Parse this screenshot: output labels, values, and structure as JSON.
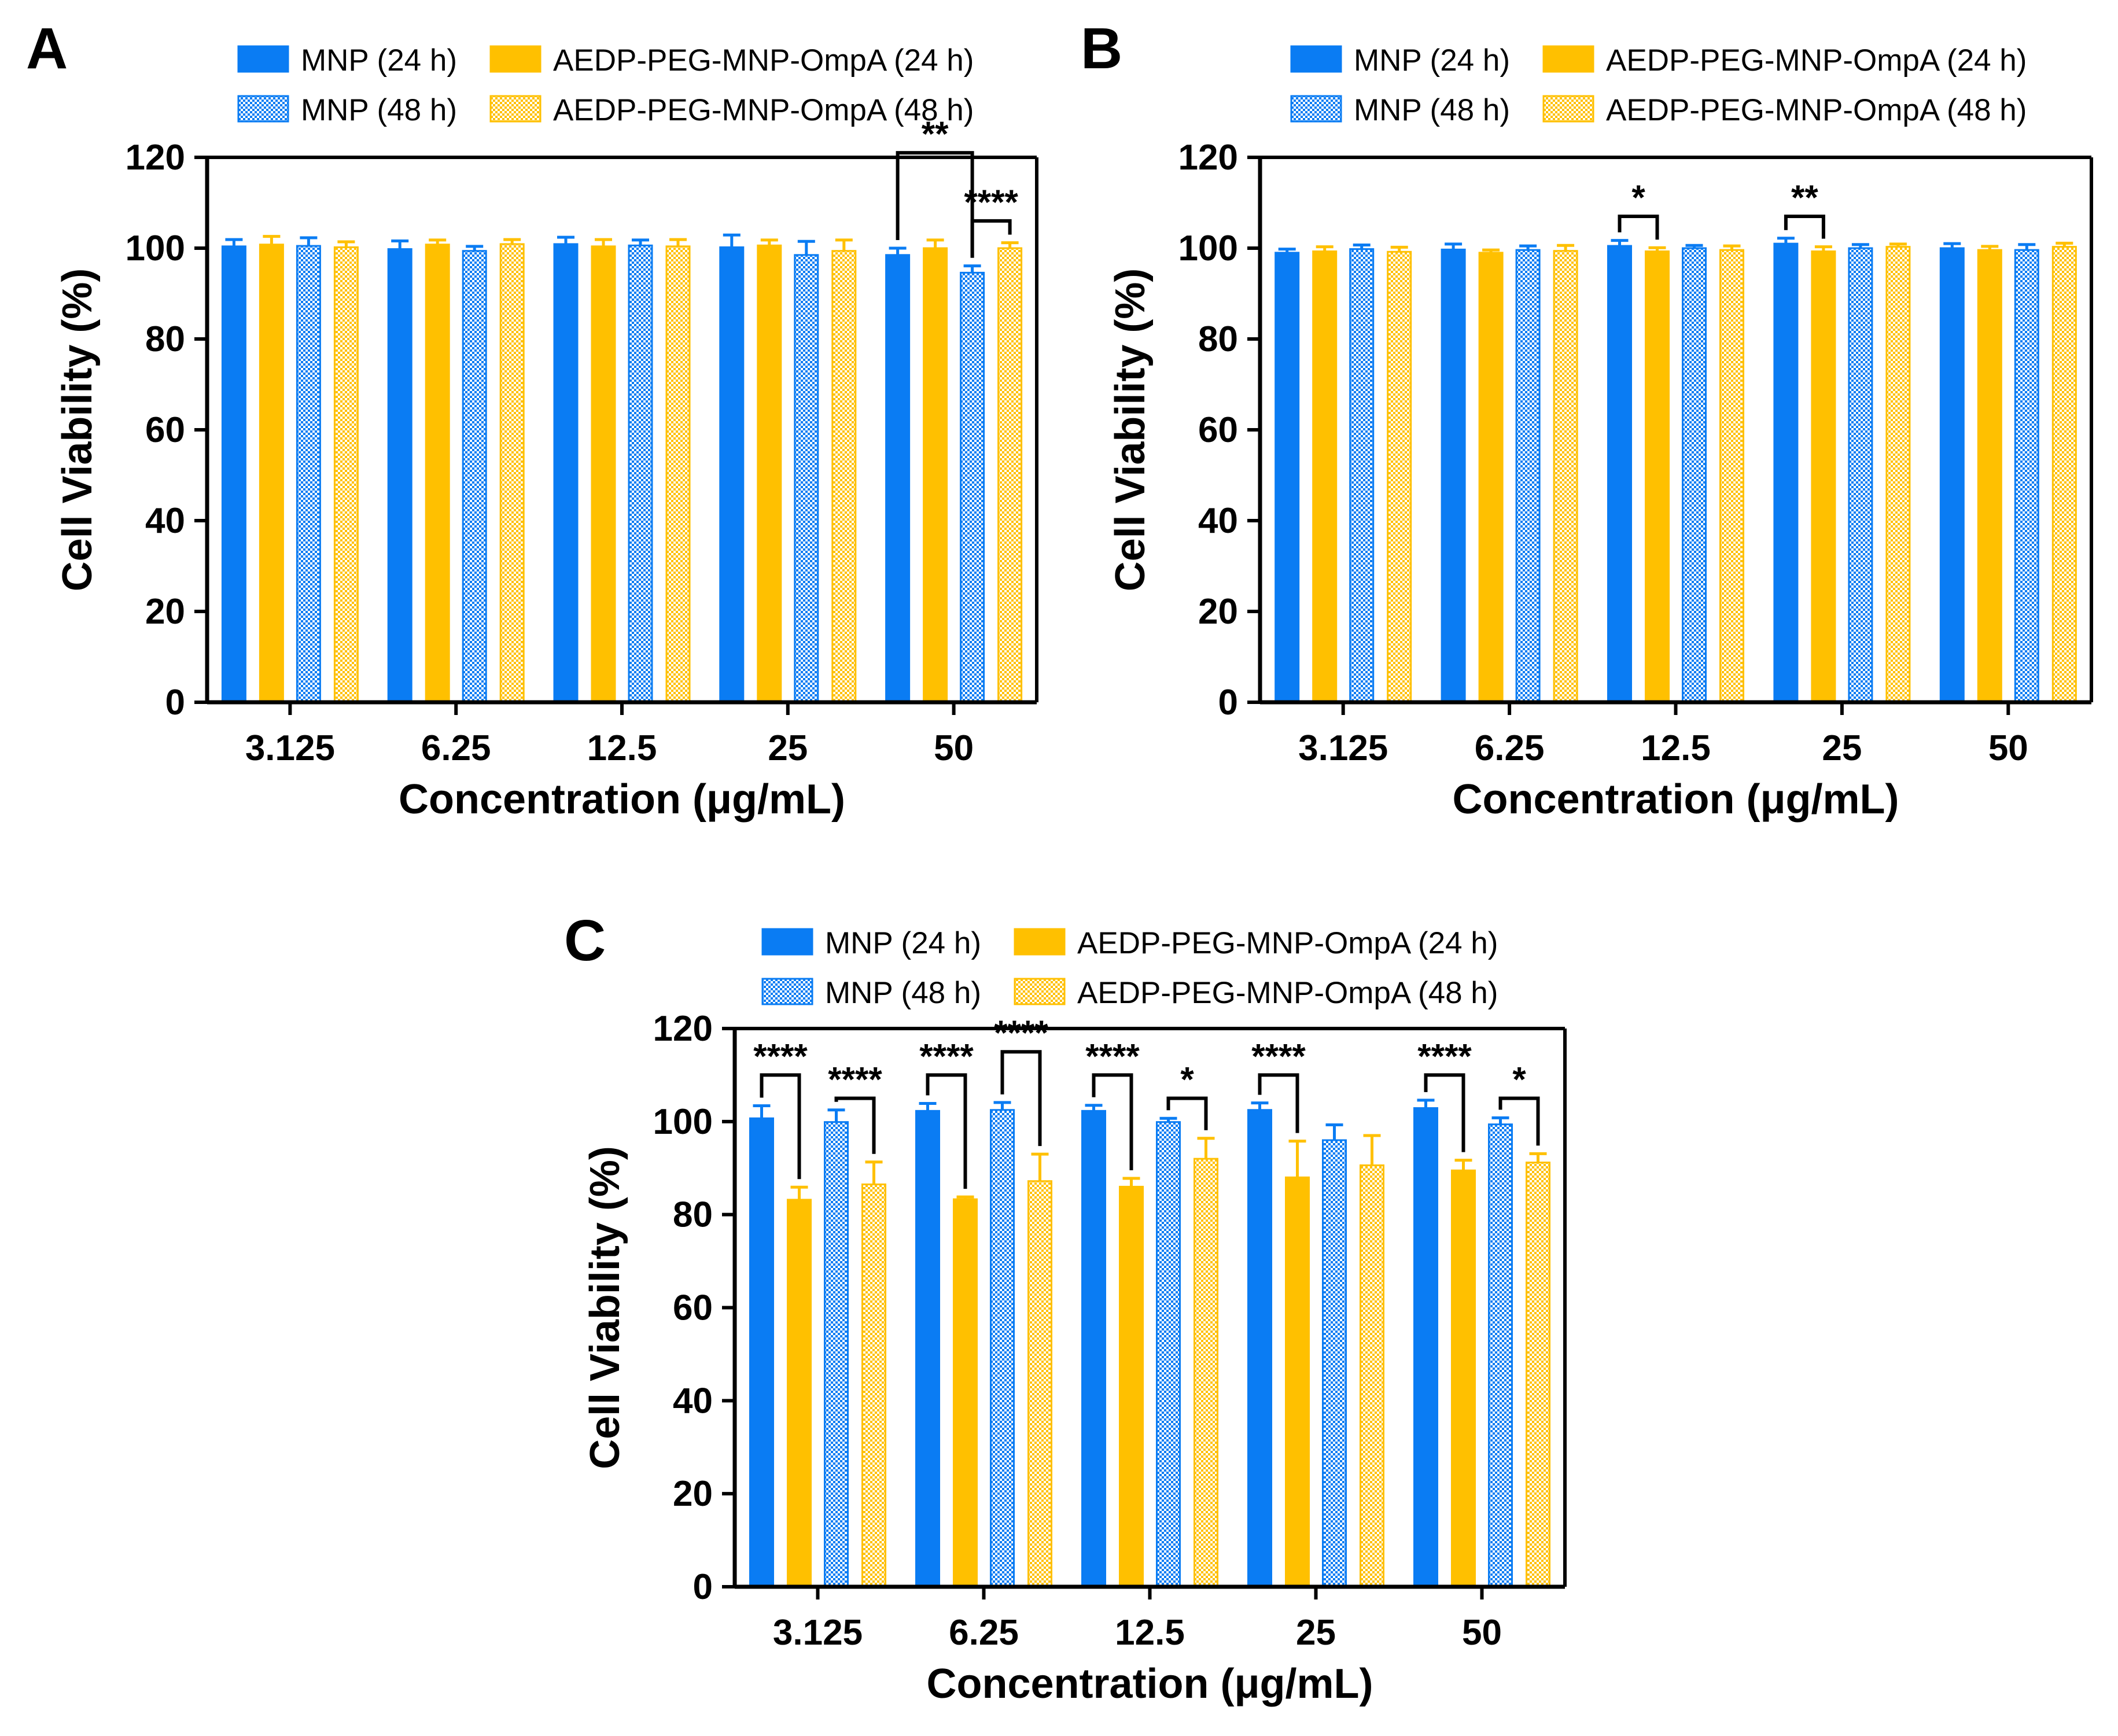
{
  "colors": {
    "mnp": "#0A7CF3",
    "aedp": "#FFC000",
    "axis": "#000000",
    "pattern_bg": "#ffffff"
  },
  "legend": {
    "items": [
      {
        "label": "MNP (24 h)",
        "color": "#0A7CF3",
        "pattern": false
      },
      {
        "label": "AEDP-PEG-MNP-OmpA (24 h)",
        "color": "#FFC000",
        "pattern": false
      },
      {
        "label": "MNP (48 h)",
        "color": "#0A7CF3",
        "pattern": true
      },
      {
        "label": "AEDP-PEG-MNP-OmpA (48 h)",
        "color": "#FFC000",
        "pattern": true
      }
    ]
  },
  "chart_data": [
    {
      "panel": "A",
      "type": "bar",
      "xlabel": "Concentration (μg/mL)",
      "ylabel": "Cell Viability (%)",
      "ylim": [
        0,
        120
      ],
      "yticks": [
        0,
        20,
        40,
        60,
        80,
        100,
        120
      ],
      "categories": [
        "3.125",
        "6.25",
        "12.5",
        "25",
        "50"
      ],
      "series": [
        {
          "name": "MNP (24 h)",
          "values": [
            100.4,
            99.8,
            100.9,
            100.2,
            98.5
          ],
          "errors": [
            1.5,
            1.8,
            1.5,
            2.7,
            1.5
          ]
        },
        {
          "name": "AEDP-PEG-MNP-OmpA (24 h)",
          "values": [
            100.8,
            100.8,
            100.4,
            100.6,
            100.0
          ],
          "errors": [
            1.8,
            1.0,
            1.5,
            1.2,
            1.8
          ]
        },
        {
          "name": "MNP (48 h)",
          "values": [
            100.5,
            99.4,
            100.6,
            98.5,
            94.6
          ],
          "errors": [
            1.8,
            1.0,
            1.2,
            3.0,
            1.5
          ]
        },
        {
          "name": "AEDP-PEG-MNP-OmpA (48 h)",
          "values": [
            100.2,
            100.9,
            100.4,
            99.4,
            100.0
          ],
          "errors": [
            1.2,
            1.0,
            1.5,
            2.4,
            1.2
          ]
        }
      ],
      "significance": [
        {
          "label": "**",
          "category": 4,
          "from": 0,
          "to": 2,
          "level": 121
        },
        {
          "label": "****",
          "category": 4,
          "from": 2,
          "to": 3,
          "level": 106
        }
      ]
    },
    {
      "panel": "B",
      "type": "bar",
      "xlabel": "Concentration (μg/mL)",
      "ylabel": "Cell Viability (%)",
      "ylim": [
        0,
        120
      ],
      "yticks": [
        0,
        20,
        40,
        60,
        80,
        100,
        120
      ],
      "categories": [
        "3.125",
        "6.25",
        "12.5",
        "25",
        "50"
      ],
      "series": [
        {
          "name": "MNP (24 h)",
          "values": [
            99.0,
            99.7,
            100.5,
            101.0,
            100.0
          ],
          "errors": [
            0.8,
            1.2,
            1.2,
            1.2,
            1.0
          ]
        },
        {
          "name": "AEDP-PEG-MNP-OmpA (24 h)",
          "values": [
            99.3,
            99.0,
            99.3,
            99.3,
            99.6
          ],
          "errors": [
            1.0,
            0.6,
            0.8,
            1.0,
            0.8
          ]
        },
        {
          "name": "MNP (48 h)",
          "values": [
            99.8,
            99.6,
            100.0,
            100.0,
            99.6
          ],
          "errors": [
            0.9,
            0.9,
            0.6,
            0.8,
            1.2
          ]
        },
        {
          "name": "AEDP-PEG-MNP-OmpA (48 h)",
          "values": [
            99.2,
            99.4,
            99.6,
            100.3,
            100.3
          ],
          "errors": [
            1.0,
            1.2,
            0.9,
            0.6,
            0.8
          ]
        }
      ],
      "significance": [
        {
          "label": "*",
          "category": 2,
          "from": 0,
          "to": 1,
          "level": 107
        },
        {
          "label": "**",
          "category": 3,
          "from": 0,
          "to": 1,
          "level": 107
        }
      ]
    },
    {
      "panel": "C",
      "type": "bar",
      "xlabel": "Concentration (μg/mL)",
      "ylabel": "Cell Viability (%)",
      "ylim": [
        0,
        120
      ],
      "yticks": [
        0,
        20,
        40,
        60,
        80,
        100,
        120
      ],
      "categories": [
        "3.125",
        "6.25",
        "12.5",
        "25",
        "50"
      ],
      "series": [
        {
          "name": "MNP (24 h)",
          "values": [
            100.7,
            102.3,
            102.3,
            102.5,
            102.9
          ],
          "errors": [
            2.7,
            1.6,
            1.2,
            1.5,
            1.7
          ]
        },
        {
          "name": "AEDP-PEG-MNP-OmpA (24 h)",
          "values": [
            83.2,
            83.3,
            86.0,
            88.0,
            89.5
          ],
          "errors": [
            2.7,
            0.5,
            1.8,
            7.8,
            2.2
          ]
        },
        {
          "name": "MNP (48 h)",
          "values": [
            99.9,
            102.5,
            99.9,
            96.0,
            99.4
          ],
          "errors": [
            2.6,
            1.6,
            0.8,
            3.3,
            1.4
          ]
        },
        {
          "name": "AEDP-PEG-MNP-OmpA (48 h)",
          "values": [
            86.5,
            87.2,
            92.0,
            90.6,
            91.2
          ],
          "errors": [
            4.8,
            5.8,
            4.4,
            6.4,
            1.9
          ]
        }
      ],
      "significance": [
        {
          "label": "****",
          "category": 0,
          "from": 0,
          "to": 1,
          "level": 110
        },
        {
          "label": "****",
          "category": 0,
          "from": 2,
          "to": 3,
          "level": 105
        },
        {
          "label": "****",
          "category": 1,
          "from": 0,
          "to": 1,
          "level": 110
        },
        {
          "label": "****",
          "category": 1,
          "from": 2,
          "to": 3,
          "level": 115
        },
        {
          "label": "****",
          "category": 2,
          "from": 0,
          "to": 1,
          "level": 110
        },
        {
          "label": "*",
          "category": 2,
          "from": 2,
          "to": 3,
          "level": 105
        },
        {
          "label": "****",
          "category": 3,
          "from": 0,
          "to": 1,
          "level": 110
        },
        {
          "label": "****",
          "category": 4,
          "from": 0,
          "to": 1,
          "level": 110
        },
        {
          "label": "*",
          "category": 4,
          "from": 2,
          "to": 3,
          "level": 105
        }
      ]
    }
  ]
}
